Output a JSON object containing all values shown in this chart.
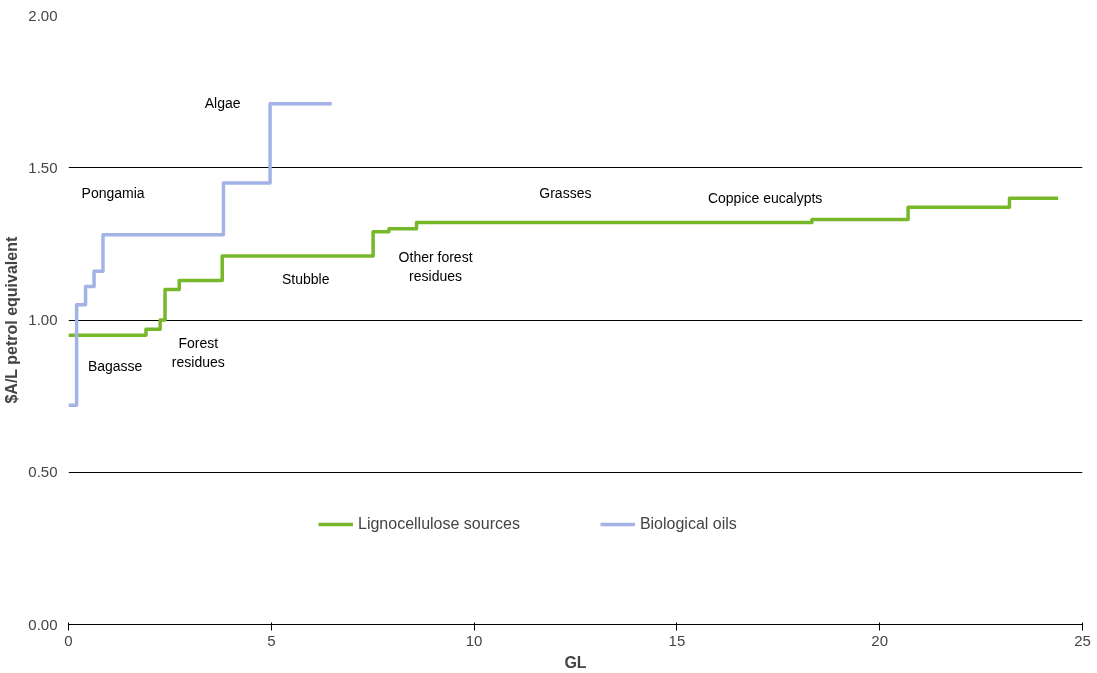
{
  "chart_data": {
    "type": "step",
    "xlabel": "GL",
    "ylabel": "$A/L petrol equivalent",
    "xlim": [
      0,
      25
    ],
    "xticks": [
      0,
      5,
      10,
      15,
      20,
      25
    ],
    "ylim": [
      0,
      2
    ],
    "yticks": [
      {
        "value": 0,
        "label": "0.00"
      },
      {
        "value": 0.5,
        "label": "0.50"
      },
      {
        "value": 1,
        "label": "1.00"
      },
      {
        "value": 1.5,
        "label": "1.50"
      },
      {
        "value": 2,
        "label": "2.00"
      }
    ],
    "grid": "y",
    "legend": "bottom",
    "line_style": "solid",
    "marker": "none",
    "series": [
      {
        "name": "Lignocellulose sources",
        "color": "#77b82a",
        "x": [
          0,
          1.91,
          2.26,
          2.38,
          2.73,
          3.79,
          7.51,
          7.9,
          8.58,
          18.33,
          20.7,
          23.2,
          24.4
        ],
        "values": [
          0.95,
          0.97,
          1.0,
          1.1,
          1.13,
          1.21,
          1.29,
          1.3,
          1.32,
          1.33,
          1.37,
          1.4,
          1.4
        ]
      },
      {
        "name": "Biological oils",
        "color": "#a3b3e6",
        "x": [
          0,
          0.2,
          0.42,
          0.63,
          0.85,
          3.82,
          4.97,
          6.49
        ],
        "values": [
          0.72,
          1.05,
          1.11,
          1.16,
          1.28,
          1.45,
          1.71,
          1.71
        ]
      }
    ],
    "annotations": [
      "Algae",
      "Pongamia",
      "Bagasse",
      "Forest\nresidues",
      "Stubble",
      "Other forest\nresidues",
      "Grasses",
      "Coppice eucalypts"
    ]
  }
}
